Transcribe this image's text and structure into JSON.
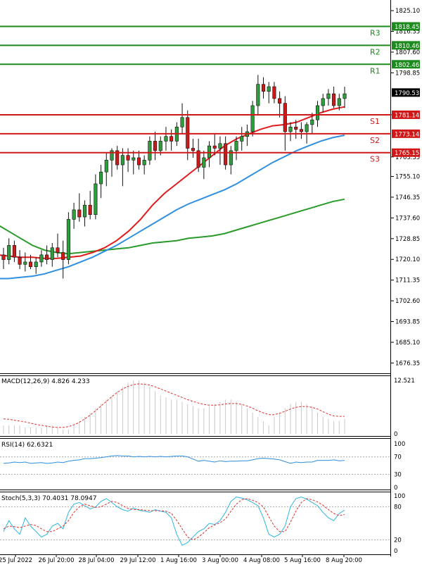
{
  "chart_data": {
    "type": "candlestick",
    "colors": {
      "bull": "#2e9e3c",
      "bear": "#d01818",
      "resistance": "#1c8a1c",
      "support": "#d01818",
      "ema_fast": "#e01c1c",
      "ema_mid": "#2f8fe0",
      "ema_slow": "#2a9a2a",
      "macd_hist": "#c8c8c8",
      "macd_signal": "#e03030",
      "rsi_line": "#2f8fe0",
      "stoch_k": "#2fb6e0",
      "stoch_d": "#e03030"
    },
    "main": {
      "y_ticks": [
        "1825.10",
        "1816.35",
        "1807.60",
        "1798.85",
        "1781.14",
        "1763.35",
        "1755.10",
        "1746.35",
        "1737.60",
        "1728.85",
        "1720.10",
        "1711.35",
        "1702.60",
        "1693.85",
        "1685.10",
        "1676.35"
      ],
      "last_price": "1790.53",
      "levels": [
        {
          "name": "R3",
          "value": 1818.45,
          "label": "1818.45",
          "kind": "resistance"
        },
        {
          "name": "R2",
          "value": 1810.46,
          "label": "1810.46",
          "kind": "resistance"
        },
        {
          "name": "R1",
          "value": 1802.46,
          "label": "1802.46",
          "kind": "resistance"
        },
        {
          "name": "S1",
          "value": 1781.14,
          "label": "1781.14",
          "kind": "support"
        },
        {
          "name": "S2",
          "value": 1773.14,
          "label": "1773.14",
          "kind": "support"
        },
        {
          "name": "S3",
          "value": 1765.15,
          "label": "1765.15",
          "kind": "support"
        }
      ],
      "ylim": [
        1672,
        1829
      ],
      "candles": [
        [
          1722,
          1725,
          1716,
          1720
        ],
        [
          1720,
          1729,
          1718,
          1726
        ],
        [
          1726,
          1728,
          1719,
          1721
        ],
        [
          1721,
          1724,
          1716,
          1718
        ],
        [
          1718,
          1723,
          1715,
          1719
        ],
        [
          1719,
          1722,
          1716,
          1717
        ],
        [
          1717,
          1721,
          1714,
          1719
        ],
        [
          1719,
          1724,
          1717,
          1722
        ],
        [
          1722,
          1726,
          1718,
          1720
        ],
        [
          1720,
          1727,
          1717,
          1725
        ],
        [
          1725,
          1731,
          1721,
          1723
        ],
        [
          1723,
          1728,
          1712,
          1720
        ],
        [
          1720,
          1740,
          1718,
          1737
        ],
        [
          1737,
          1744,
          1733,
          1741
        ],
        [
          1741,
          1748,
          1736,
          1738
        ],
        [
          1738,
          1745,
          1734,
          1743
        ],
        [
          1743,
          1749,
          1737,
          1739
        ],
        [
          1739,
          1756,
          1737,
          1752
        ],
        [
          1752,
          1760,
          1746,
          1757
        ],
        [
          1757,
          1765,
          1751,
          1762
        ],
        [
          1762,
          1767,
          1755,
          1766
        ],
        [
          1766,
          1768,
          1758,
          1760
        ],
        [
          1760,
          1767,
          1751,
          1764
        ],
        [
          1764,
          1767,
          1757,
          1762
        ],
        [
          1762,
          1766,
          1756,
          1763
        ],
        [
          1763,
          1766,
          1758,
          1760
        ],
        [
          1760,
          1764,
          1756,
          1762
        ],
        [
          1762,
          1772,
          1760,
          1770
        ],
        [
          1770,
          1774,
          1762,
          1766
        ],
        [
          1766,
          1772,
          1764,
          1770
        ],
        [
          1770,
          1776,
          1766,
          1772
        ],
        [
          1772,
          1775,
          1766,
          1770
        ],
        [
          1770,
          1778,
          1768,
          1776
        ],
        [
          1776,
          1786,
          1773,
          1780
        ],
        [
          1780,
          1783,
          1762,
          1767
        ],
        [
          1767,
          1771,
          1763,
          1766
        ],
        [
          1766,
          1771,
          1757,
          1759
        ],
        [
          1759,
          1766,
          1754,
          1763
        ],
        [
          1763,
          1770,
          1759,
          1768
        ],
        [
          1768,
          1773,
          1764,
          1767
        ],
        [
          1767,
          1772,
          1760,
          1769
        ],
        [
          1769,
          1772,
          1758,
          1760
        ],
        [
          1760,
          1768,
          1756,
          1766
        ],
        [
          1766,
          1772,
          1762,
          1770
        ],
        [
          1770,
          1776,
          1766,
          1772
        ],
        [
          1772,
          1777,
          1768,
          1774
        ],
        [
          1774,
          1787,
          1772,
          1785
        ],
        [
          1785,
          1798,
          1781,
          1794
        ],
        [
          1794,
          1797,
          1788,
          1791
        ],
        [
          1791,
          1795,
          1786,
          1793
        ],
        [
          1793,
          1795,
          1786,
          1788
        ],
        [
          1788,
          1791,
          1780,
          1786
        ],
        [
          1786,
          1789,
          1766,
          1774
        ],
        [
          1774,
          1778,
          1770,
          1776
        ],
        [
          1776,
          1779,
          1771,
          1775
        ],
        [
          1775,
          1778,
          1771,
          1774
        ],
        [
          1774,
          1778,
          1769,
          1777
        ],
        [
          1777,
          1782,
          1773,
          1779
        ],
        [
          1779,
          1787,
          1776,
          1785
        ],
        [
          1785,
          1790,
          1782,
          1788
        ],
        [
          1788,
          1792,
          1785,
          1790
        ],
        [
          1790,
          1793,
          1784,
          1785
        ],
        [
          1785,
          1790,
          1783,
          1788
        ],
        [
          1788,
          1793,
          1784,
          1790
        ]
      ],
      "ema_fast": [
        1722,
        1721.5,
        1721,
        1721,
        1720.5,
        1720.5,
        1721,
        1721.5,
        1723,
        1725,
        1728,
        1732,
        1737,
        1743,
        1748,
        1752,
        1756,
        1760,
        1764,
        1768,
        1771,
        1773,
        1775,
        1776.5,
        1777,
        1778,
        1780,
        1782,
        1783.5,
        1784.5
      ],
      "ema_mid": [
        1712,
        1712,
        1712.5,
        1713,
        1714,
        1715.5,
        1717,
        1719,
        1721,
        1723.5,
        1726,
        1729,
        1732,
        1735,
        1738,
        1741,
        1743.5,
        1745.5,
        1747.5,
        1749.5,
        1752,
        1755,
        1758,
        1761,
        1763.5,
        1766,
        1768,
        1770,
        1771.5,
        1772.5
      ],
      "ema_slow": [
        1735,
        1732,
        1729,
        1726,
        1724,
        1723,
        1722.5,
        1723,
        1723.5,
        1724,
        1724.5,
        1725,
        1726,
        1727,
        1727.5,
        1728,
        1729,
        1729.5,
        1730,
        1731,
        1732.5,
        1734,
        1735.5,
        1737,
        1738.5,
        1740,
        1741.5,
        1743,
        1744.5,
        1745.5
      ]
    },
    "macd": {
      "label": "MACD(12,26,9) 4.826 4.233",
      "y_ticks": [
        "12.521",
        "0"
      ],
      "ylim": [
        0,
        13
      ],
      "hist": [
        2,
        2,
        2,
        2,
        1.5,
        1.5,
        1.5,
        1.5,
        2,
        2,
        1.5,
        1,
        1,
        2,
        3,
        4,
        5,
        6,
        7,
        8,
        9,
        10,
        11,
        12,
        12.5,
        12.5,
        12,
        11,
        10,
        9,
        8.5,
        8,
        8,
        7.5,
        7,
        6.5,
        6,
        6,
        6.5,
        7,
        7.5,
        8,
        8,
        7.5,
        7,
        6,
        5,
        4,
        3,
        2,
        4,
        5,
        6,
        7,
        7.5,
        7.5,
        7,
        6.5,
        5,
        4,
        3.5,
        3,
        3,
        3.5
      ],
      "signal": [
        3.5,
        3.4,
        3.2,
        3,
        2.8,
        2.5,
        2.2,
        2,
        1.8,
        1.6,
        1.5,
        1.5,
        1.7,
        2.1,
        2.7,
        3.5,
        4.4,
        5.4,
        6.5,
        7.6,
        8.7,
        9.7,
        10.5,
        11.1,
        11.5,
        11.7,
        11.6,
        11.4,
        11,
        10.5,
        10,
        9.5,
        9,
        8.5,
        8,
        7.6,
        7.2,
        6.9,
        6.7,
        6.7,
        6.8,
        7,
        7.1,
        7.1,
        6.9,
        6.5,
        6,
        5.4,
        4.9,
        4.5,
        4.5,
        4.8,
        5.3,
        5.8,
        6.2,
        6.4,
        6.4,
        6.2,
        5.8,
        5.2,
        4.6,
        4.2,
        4.1,
        4.1
      ]
    },
    "rsi": {
      "label": "RSI(14) 62.6321",
      "y_ticks": [
        "100",
        "70",
        "30",
        "0"
      ],
      "ylim": [
        0,
        100
      ],
      "values": [
        55,
        56,
        58,
        57,
        58,
        55,
        56,
        57,
        55,
        56,
        58,
        57,
        60,
        62,
        63,
        66,
        66,
        67,
        68,
        70,
        72,
        73,
        72,
        72,
        70,
        71,
        70,
        71,
        70,
        71,
        70,
        71,
        72,
        72,
        70,
        65,
        60,
        62,
        60,
        58,
        61,
        59,
        60,
        60,
        61,
        61,
        63,
        66,
        67,
        66,
        65,
        63,
        59,
        55,
        58,
        57,
        58,
        58,
        62,
        62,
        62,
        63,
        61,
        62
      ]
    },
    "stoch": {
      "label": "Stoch(5,3,3) 70.4031 78.0947",
      "y_ticks": [
        "100",
        "80",
        "20",
        "0"
      ],
      "ylim": [
        0,
        100
      ],
      "k": [
        35,
        55,
        40,
        30,
        60,
        45,
        35,
        25,
        30,
        45,
        50,
        40,
        70,
        85,
        88,
        82,
        76,
        80,
        90,
        95,
        88,
        80,
        75,
        72,
        78,
        74,
        72,
        70,
        75,
        72,
        70,
        60,
        30,
        10,
        15,
        25,
        35,
        40,
        50,
        48,
        55,
        70,
        90,
        98,
        96,
        93,
        88,
        82,
        60,
        30,
        25,
        30,
        45,
        80,
        95,
        98,
        94,
        88,
        82,
        70,
        60,
        55,
        68,
        74
      ],
      "d": [
        40,
        45,
        44,
        42,
        45,
        48,
        46,
        40,
        35,
        35,
        40,
        45,
        55,
        70,
        80,
        85,
        82,
        79,
        80,
        85,
        90,
        88,
        82,
        77,
        75,
        75,
        74,
        73,
        73,
        73,
        72,
        68,
        55,
        40,
        25,
        20,
        25,
        33,
        42,
        47,
        51,
        58,
        72,
        85,
        93,
        95,
        92,
        88,
        80,
        62,
        45,
        35,
        35,
        52,
        72,
        88,
        95,
        93,
        89,
        83,
        75,
        68,
        64,
        66
      ]
    },
    "x_ticks": [
      "25 Jul 2022",
      "26 Jul 20:00",
      "28 Jul 04:00",
      "29 Jul 12:00",
      "1 Aug 16:00",
      "3 Aug 00:00",
      "4 Aug 08:00",
      "5 Aug 16:00",
      "8 Aug 20:00"
    ]
  }
}
